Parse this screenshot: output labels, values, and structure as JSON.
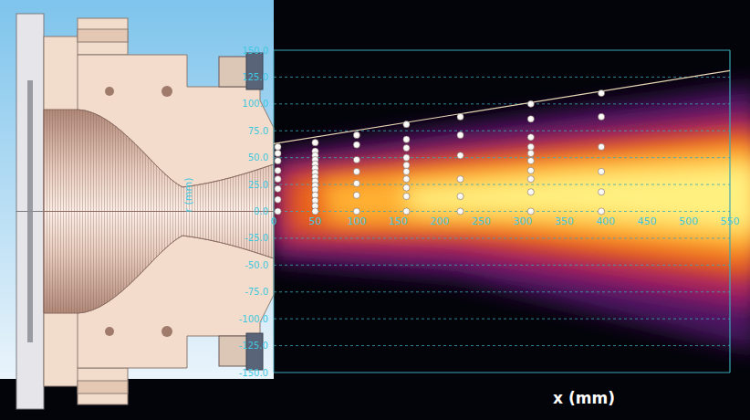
{
  "chart_data": {
    "type": "scatter",
    "x_label": "x (mm)",
    "y_label": "r (mm)",
    "xlim": [
      0,
      550
    ],
    "ylim": [
      -150,
      150
    ],
    "xticks": [
      0,
      50,
      100,
      150,
      200,
      250,
      300,
      350,
      400,
      450,
      500,
      550
    ],
    "yticks": [
      {
        "value": 150,
        "label": "150.0"
      },
      {
        "value": 125,
        "label": "125.0"
      },
      {
        "value": 100,
        "label": "100.0"
      },
      {
        "value": 75,
        "label": "75.0"
      },
      {
        "value": 50,
        "label": "50.0"
      },
      {
        "value": 25,
        "label": "25.0"
      },
      {
        "value": 0,
        "label": "0.0"
      },
      {
        "value": -25,
        "label": "-25.0"
      },
      {
        "value": -50,
        "label": "-50.0"
      },
      {
        "value": -75,
        "label": "-75.0"
      },
      {
        "value": -100,
        "label": "-100.0"
      },
      {
        "value": -125,
        "label": "-125.0"
      },
      {
        "value": -150,
        "label": "-150.0"
      }
    ],
    "grid": true,
    "series": [
      {
        "type": "scatter",
        "marker": "circle",
        "color": "#f4f0ec",
        "x": [
          5,
          5,
          5,
          5,
          5,
          5,
          5,
          5,
          50,
          50,
          50,
          50,
          50,
          50,
          50,
          50,
          50,
          50,
          50,
          50,
          50,
          50,
          50,
          100,
          100,
          100,
          100,
          100,
          100,
          100,
          160,
          160,
          160,
          160,
          160,
          160,
          160,
          160,
          160,
          160,
          225,
          225,
          225,
          225,
          225,
          225,
          310,
          310,
          310,
          310,
          310,
          310,
          310,
          310,
          310,
          310,
          395,
          395,
          395,
          395,
          395,
          395
        ],
        "values": [
          60,
          54,
          47,
          38,
          30,
          21,
          11,
          0,
          64,
          56,
          52,
          48,
          44,
          40,
          36,
          32,
          28,
          24,
          20,
          15,
          10,
          5,
          0,
          71,
          62,
          48,
          37,
          26,
          15,
          0,
          81,
          67,
          59,
          50,
          43,
          37,
          30,
          22,
          14,
          0,
          88,
          71,
          52,
          30,
          14,
          0,
          100,
          86,
          69,
          60,
          54,
          47,
          38,
          30,
          18,
          0,
          110,
          88,
          60,
          37,
          18,
          0
        ]
      },
      {
        "type": "line",
        "line_style": "solid",
        "color": "#e6d6b4",
        "x": [
          0,
          550
        ],
        "values": [
          63,
          131
        ]
      }
    ]
  }
}
